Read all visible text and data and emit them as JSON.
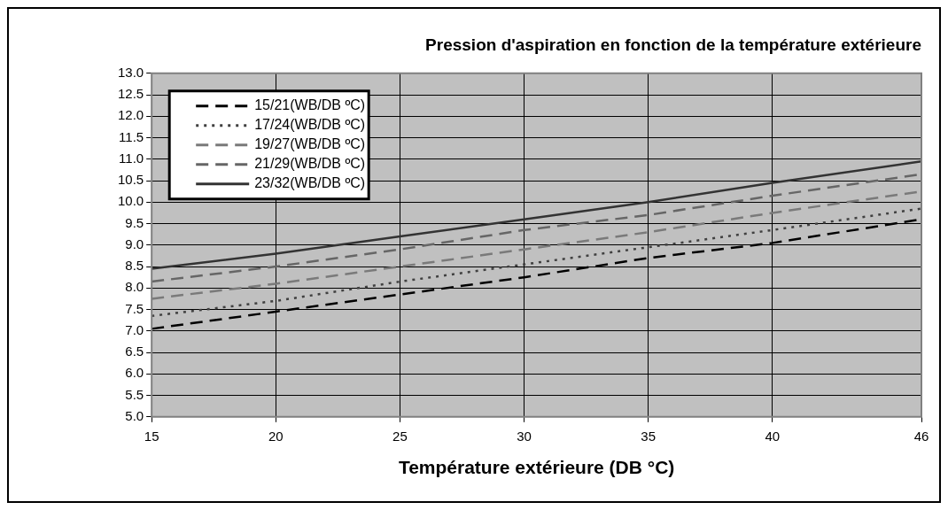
{
  "chart_data": {
    "type": "line",
    "title": "Pression d'aspiration en fonction de la température extérieure",
    "xlabel": "Température extérieure (DB °C)",
    "x": [
      15,
      20,
      25,
      30,
      35,
      40,
      46
    ],
    "xlim": [
      15,
      46
    ],
    "xticks": [
      15,
      20,
      25,
      30,
      35,
      40,
      46
    ],
    "ylim": [
      5,
      13
    ],
    "yticks": [
      {
        "value": 5,
        "label": "5.0"
      },
      5.5,
      {
        "value": 6,
        "label": "6.0"
      },
      6.5,
      {
        "value": 7,
        "label": "7.0"
      },
      7.5,
      {
        "value": 8,
        "label": "8.0"
      },
      8.5,
      {
        "value": 9,
        "label": "9.0"
      },
      9.5,
      {
        "value": 10,
        "label": "10.0"
      },
      10.5,
      {
        "value": 11,
        "label": "11.0"
      },
      11.5,
      {
        "value": 12,
        "label": "12.0"
      },
      12.5,
      {
        "value": 13,
        "label": "13.0"
      }
    ],
    "grid": true,
    "legend": "top left",
    "marker": "none",
    "series": [
      {
        "name": "15/21(WB/DB ºC)",
        "color": "#000000",
        "line_style": "dashed",
        "values": [
          7.05,
          7.45,
          7.85,
          8.25,
          8.7,
          9.05,
          9.6
        ]
      },
      {
        "name": "17/24(WB/DB ºC)",
        "color": "#404040",
        "line_style": "dotted",
        "values": [
          7.35,
          7.7,
          8.15,
          8.55,
          8.95,
          9.35,
          9.85
        ]
      },
      {
        "name": "19/27(WB/DB ºC)",
        "color": "#7a7a7a",
        "line_style": "dashed",
        "values": [
          7.75,
          8.1,
          8.5,
          8.9,
          9.3,
          9.75,
          10.25
        ]
      },
      {
        "name": "21/29(WB/DB ºC)",
        "color": "#666666",
        "line_style": "dashed",
        "values": [
          8.15,
          8.5,
          8.9,
          9.35,
          9.7,
          10.15,
          10.65
        ]
      },
      {
        "name": "23/32(WB/DB ºC)",
        "color": "#333333",
        "line_style": "solid",
        "values": [
          8.45,
          8.8,
          9.2,
          9.6,
          10.0,
          10.45,
          10.95
        ]
      }
    ]
  }
}
